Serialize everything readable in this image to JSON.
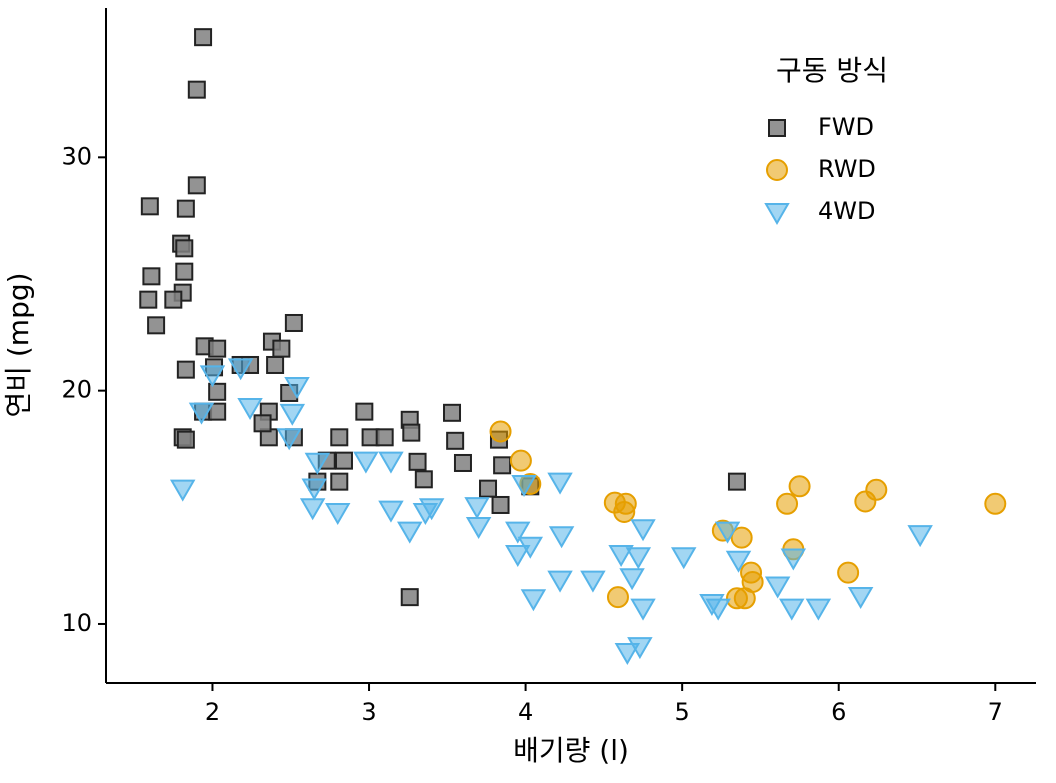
{
  "chart_data": {
    "type": "scatter",
    "x_label": "배기량 (l)",
    "y_label": "연비 (mpg)",
    "legend_title": "구동 방식",
    "legend_position": "upper right",
    "xlim": [
      1.32,
      7.26
    ],
    "ylim": [
      7.47,
      36.4
    ],
    "xticks": [
      2,
      3,
      4,
      5,
      6,
      7
    ],
    "yticks": [
      10,
      20,
      30
    ],
    "grid": false,
    "series": [
      {
        "name": "FWD",
        "color": "#808080",
        "edge": "#222222",
        "marker": "square",
        "x": [
          1.94,
          1.9,
          1.9,
          1.6,
          1.83,
          1.8,
          1.82,
          1.61,
          1.82,
          1.81,
          1.59,
          1.75,
          1.64,
          2.52,
          2.38,
          2.44,
          1.95,
          2.03,
          1.83,
          2.01,
          2.18,
          2.24,
          2.4,
          2.49,
          2.03,
          1.94,
          2.03,
          2.36,
          1.81,
          1.83,
          2.36,
          2.52,
          2.97,
          3.26,
          3.53,
          3.27,
          2.81,
          2.84,
          2.73,
          2.67,
          2.81,
          3.01,
          3.1,
          3.55,
          3.31,
          3.35,
          3.6,
          3.83,
          3.85,
          3.76,
          3.84,
          4.03,
          5.35,
          3.26,
          2.32
        ],
        "y": [
          35.15,
          32.9,
          28.8,
          27.9,
          27.8,
          26.3,
          26.1,
          24.9,
          25.1,
          24.2,
          23.9,
          23.9,
          22.8,
          22.9,
          22.1,
          21.8,
          21.9,
          21.8,
          20.9,
          21,
          21.1,
          21.1,
          21.1,
          19.9,
          19.95,
          19.1,
          19.1,
          19.1,
          18,
          17.9,
          18,
          18,
          19.1,
          18.75,
          19.05,
          18.2,
          18,
          17,
          17,
          16.1,
          16.1,
          18,
          18,
          17.85,
          16.95,
          16.2,
          16.9,
          17.9,
          16.8,
          15.8,
          15.1,
          15.9,
          16.1,
          11.15,
          18.6
        ]
      },
      {
        "name": "RWD",
        "color": "#E69F00",
        "edge": "#E69F00",
        "marker": "circle",
        "x": [
          3.84,
          3.97,
          4.03,
          4.57,
          4.64,
          4.59,
          5.26,
          5.38,
          5.67,
          5.75,
          6.17,
          6.24,
          7.0,
          5.71,
          5.44,
          5.45,
          5.4,
          5.35,
          6.06,
          4.63
        ],
        "y": [
          18.25,
          17,
          16,
          15.2,
          15.15,
          11.15,
          14,
          13.7,
          15.15,
          15.9,
          15.25,
          15.75,
          15.15,
          13.2,
          12.2,
          11.8,
          11.1,
          11.1,
          12.2,
          14.8
        ]
      },
      {
        "name": "4WD",
        "color": "#56B4E9",
        "edge": "#56B4E9",
        "marker": "triangle-down",
        "x": [
          1.81,
          2.0,
          2.18,
          2.24,
          1.93,
          2.54,
          2.51,
          2.49,
          2.67,
          2.65,
          2.64,
          2.8,
          2.98,
          3.14,
          3.14,
          3.26,
          3.36,
          3.4,
          3.69,
          3.7,
          3.95,
          3.95,
          4.03,
          4.05,
          3.99,
          4.22,
          4.23,
          4.22,
          4.43,
          4.61,
          4.72,
          4.68,
          4.75,
          4.65,
          4.73,
          4.75,
          5.01,
          5.36,
          5.29,
          5.19,
          5.23,
          5.61,
          5.71,
          5.7,
          5.87,
          6.14,
          6.52
        ],
        "y": [
          15.8,
          20.7,
          21,
          19.3,
          19.1,
          20.2,
          19.05,
          18,
          16.95,
          15.85,
          15,
          14.8,
          17,
          17,
          14.9,
          14,
          14.8,
          15,
          15.05,
          14.2,
          14,
          13,
          13.35,
          11.1,
          16,
          16.1,
          13.8,
          11.9,
          11.9,
          13,
          12.9,
          12,
          10.7,
          8.8,
          9.05,
          14.1,
          12.9,
          12.75,
          14,
          10.9,
          10.7,
          11.65,
          12.85,
          10.7,
          10.7,
          11.2,
          13.85
        ]
      }
    ]
  }
}
